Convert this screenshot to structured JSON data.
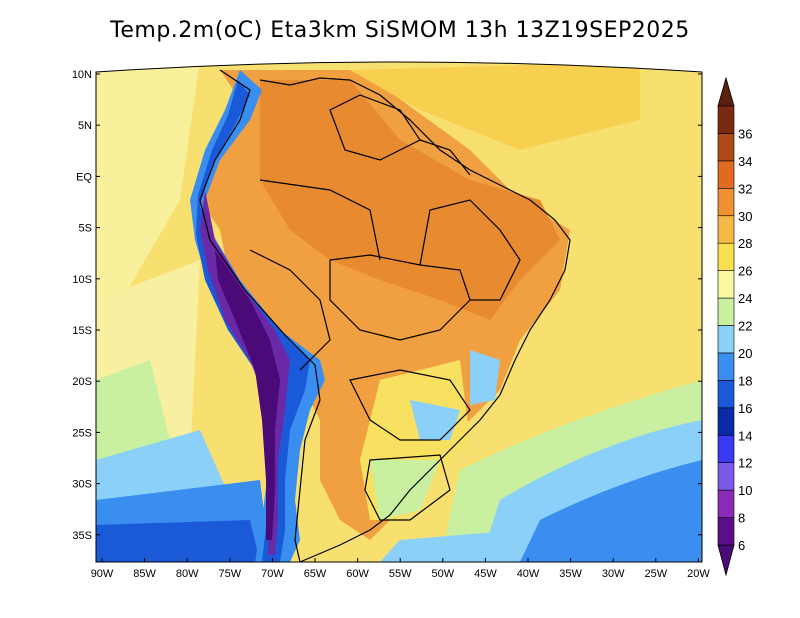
{
  "title": "Temp.2m(oC) Eta3km SiSMOM 13h 13Z19SEP2025",
  "lat_labels": [
    "10N",
    "5N",
    "EQ",
    "5S",
    "10S",
    "15S",
    "20S",
    "25S",
    "30S",
    "35S"
  ],
  "lon_labels": [
    "90W",
    "85W",
    "80W",
    "75W",
    "70W",
    "65W",
    "60W",
    "55W",
    "50W",
    "45W",
    "40W",
    "35W",
    "30W",
    "25W",
    "20W"
  ],
  "colorbar": {
    "labels": [
      "6",
      "8",
      "10",
      "12",
      "14",
      "16",
      "18",
      "20",
      "22",
      "24",
      "26",
      "28",
      "30",
      "32",
      "34",
      "36"
    ],
    "colors": [
      "#5a0e8c",
      "#8a2ab8",
      "#7a5ae8",
      "#3a3af0",
      "#0a2aa8",
      "#1a5ad8",
      "#3a8ef0",
      "#8ad0f8",
      "#c8f0a0",
      "#f8f8a0",
      "#f8e050",
      "#f8b848",
      "#f09030",
      "#e06a20",
      "#b04a18",
      "#7a2a10"
    ],
    "under_color": "#4a0a78",
    "over_color": "#5a2010"
  },
  "colors": {
    "ocean_warm": "#f8e060",
    "land_hot": "#f0a040",
    "land_hotter": "#e88a30",
    "andes_cold": "#6a2aa8",
    "south_ocean": "#3a8ef0"
  }
}
